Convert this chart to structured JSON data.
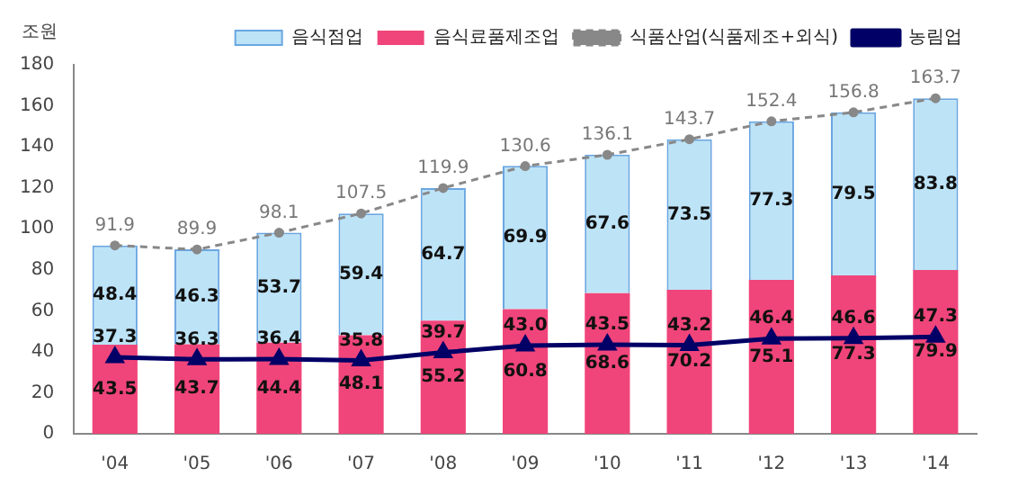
{
  "chart_data": {
    "type": "bar",
    "stacked": true,
    "ylabel": "조원",
    "categories": [
      "'04",
      "'05",
      "'06",
      "'07",
      "'08",
      "'09",
      "'10",
      "'11",
      "'12",
      "'13",
      "'14"
    ],
    "series": [
      {
        "name": "음식료품제조업",
        "color": "#f0457a",
        "values": [
          43.5,
          43.7,
          44.4,
          48.1,
          55.2,
          60.8,
          68.6,
          70.2,
          75.1,
          77.3,
          79.9
        ]
      },
      {
        "name": "음식점업",
        "color": "#bde3f7",
        "values": [
          48.4,
          46.3,
          53.7,
          59.4,
          64.7,
          69.9,
          67.6,
          73.5,
          77.3,
          79.5,
          83.8
        ]
      },
      {
        "name": "식품산업(식품제조+외식)",
        "type": "line",
        "color": "#888888",
        "line_style": "dashed",
        "marker": "circle",
        "values": [
          91.9,
          89.9,
          98.1,
          107.5,
          119.9,
          130.6,
          136.1,
          143.7,
          152.4,
          156.8,
          163.7
        ]
      },
      {
        "name": "농림업",
        "type": "line",
        "color": "#000066",
        "line_style": "solid",
        "marker": "triangle",
        "values": [
          37.3,
          36.3,
          36.4,
          35.8,
          39.7,
          43.0,
          43.5,
          43.2,
          46.4,
          46.6,
          47.3
        ],
        "value_labels": [
          "37.3",
          "36.3",
          "36.4",
          "35.8",
          "39.7",
          "43.0",
          "43.5",
          "43.2",
          "46.4",
          "46.6",
          "47.3"
        ]
      }
    ],
    "ylim": [
      0,
      180
    ],
    "yticks": [
      0,
      20,
      40,
      60,
      80,
      100,
      120,
      140,
      160,
      180
    ],
    "grid": false,
    "legend": "top",
    "data_labels": true
  }
}
